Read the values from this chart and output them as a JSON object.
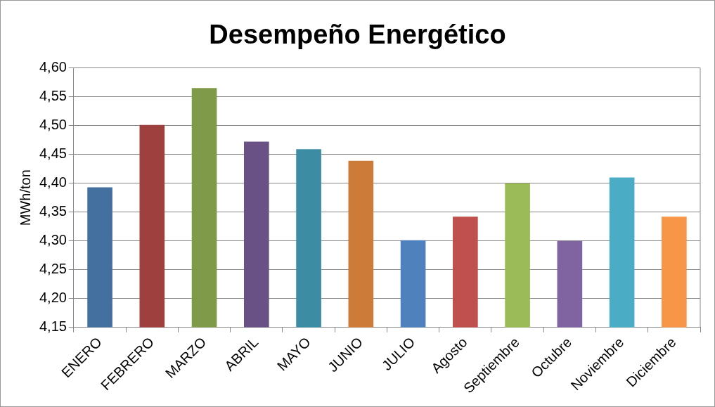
{
  "chart_data": {
    "type": "bar",
    "title": "Desempeño Energético",
    "ylabel": "MWh/ton",
    "categories": [
      "ENERO",
      "FEBRERO",
      "MARZO",
      "ABRIL",
      "MAYO",
      "JUNIO",
      "JULIO",
      "Agosto",
      "Septiembre",
      "Octubre",
      "Noviembre",
      "Diciembre"
    ],
    "values": [
      4.393,
      4.501,
      4.565,
      4.472,
      4.459,
      4.439,
      4.301,
      4.342,
      4.4,
      4.3,
      4.41,
      4.342
    ],
    "colors": [
      "#4470a0",
      "#9e413e",
      "#7f9a48",
      "#695185",
      "#3c8da3",
      "#cc7b38",
      "#4f81bd",
      "#c0504d",
      "#9bbb59",
      "#8064a2",
      "#4bacc6",
      "#f79646"
    ],
    "ylim": [
      4.15,
      4.6
    ],
    "yticks": [
      {
        "value": 4.15,
        "label": "4,15"
      },
      {
        "value": 4.2,
        "label": "4,20"
      },
      {
        "value": 4.25,
        "label": "4,25"
      },
      {
        "value": 4.3,
        "label": "4,30"
      },
      {
        "value": 4.35,
        "label": "4,35"
      },
      {
        "value": 4.4,
        "label": "4,40"
      },
      {
        "value": 4.45,
        "label": "4,45"
      },
      {
        "value": 4.5,
        "label": "4,50"
      },
      {
        "value": 4.55,
        "label": "4,55"
      },
      {
        "value": 4.6,
        "label": "4,60"
      }
    ],
    "grid": "y",
    "legend": false
  }
}
